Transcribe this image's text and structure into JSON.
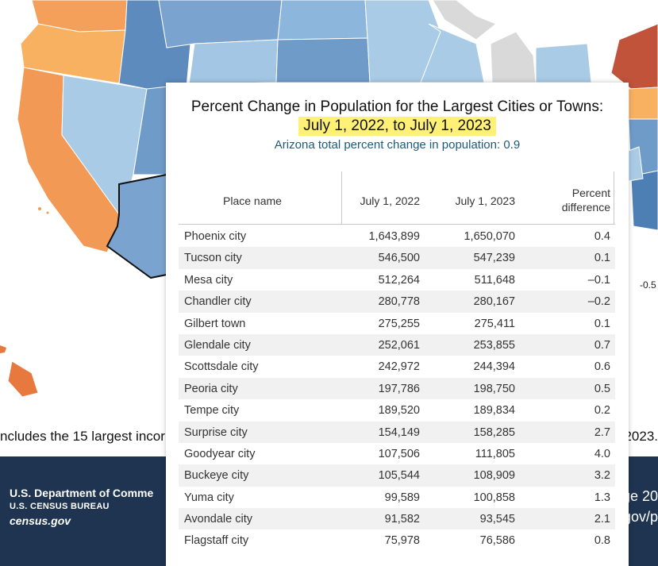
{
  "chart_data": {
    "type": "table",
    "title": "Percent Change in Population for the Largest Cities or Towns:",
    "subtitle": "July 1, 2022, to July 1, 2023",
    "note": "Arizona total percent change in population: 0.9",
    "columns": {
      "place": "Place name",
      "y2022": "July 1, 2022",
      "y2023": "July 1, 2023",
      "pct_line1": "Percent",
      "pct_line2": "difference"
    },
    "rows": [
      {
        "place": "Phoenix city",
        "y2022": "1,643,899",
        "y2023": "1,650,070",
        "pct": "0.4"
      },
      {
        "place": "Tucson city",
        "y2022": "546,500",
        "y2023": "547,239",
        "pct": "0.1"
      },
      {
        "place": "Mesa city",
        "y2022": "512,264",
        "y2023": "511,648",
        "pct": "–0.1"
      },
      {
        "place": "Chandler city",
        "y2022": "280,778",
        "y2023": "280,167",
        "pct": "–0.2"
      },
      {
        "place": "Gilbert town",
        "y2022": "275,255",
        "y2023": "275,411",
        "pct": "0.1"
      },
      {
        "place": "Glendale city",
        "y2022": "252,061",
        "y2023": "253,855",
        "pct": "0.7"
      },
      {
        "place": "Scottsdale city",
        "y2022": "242,972",
        "y2023": "244,394",
        "pct": "0.6"
      },
      {
        "place": "Peoria city",
        "y2022": "197,786",
        "y2023": "198,750",
        "pct": "0.5"
      },
      {
        "place": "Tempe city",
        "y2022": "189,520",
        "y2023": "189,834",
        "pct": "0.2"
      },
      {
        "place": "Surprise city",
        "y2022": "154,149",
        "y2023": "158,285",
        "pct": "2.7"
      },
      {
        "place": "Goodyear city",
        "y2022": "107,506",
        "y2023": "111,805",
        "pct": "4.0"
      },
      {
        "place": "Buckeye city",
        "y2022": "105,544",
        "y2023": "108,909",
        "pct": "3.2"
      },
      {
        "place": "Yuma city",
        "y2022": "99,589",
        "y2023": "100,858",
        "pct": "1.3"
      },
      {
        "place": "Avondale city",
        "y2022": "91,582",
        "y2023": "93,545",
        "pct": "2.1"
      },
      {
        "place": "Flagstaff city",
        "y2022": "75,978",
        "y2023": "76,586",
        "pct": "0.8"
      }
    ]
  },
  "background": {
    "caption_left": "ncludes the 15 largest incorp",
    "caption_right": "2023.",
    "map_scale_label": "-0.5",
    "footer": {
      "department": "U.S. Department of Comme",
      "bureau": "U.S. CENSUS BUREAU",
      "website": "census.gov",
      "right_line1": "ge 20",
      "right_line2": "gov/p"
    }
  },
  "colors": {
    "highlight": "#fff176",
    "note_text": "#1e5a7a",
    "footer_bg": "#1f3450",
    "map_orange": "#f4a05a",
    "map_light_blue": "#a9cbe6",
    "map_mid_blue": "#6f9bc8",
    "map_dark_blue": "#4d7fb5",
    "map_red": "#c0533a",
    "map_grey": "#d9d9d9"
  }
}
